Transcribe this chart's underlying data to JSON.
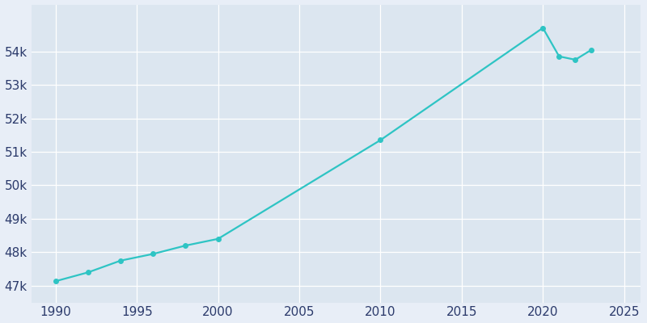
{
  "years": [
    1990,
    1992,
    1994,
    1996,
    1998,
    2000,
    2010,
    2020,
    2021,
    2022,
    2023
  ],
  "population": [
    47136,
    47400,
    47750,
    47950,
    48200,
    48400,
    51350,
    54700,
    53850,
    53750,
    54050
  ],
  "line_color": "#2ec4c4",
  "marker_color": "#2ec4c4",
  "bg_color": "#e8eef7",
  "axes_bg_color": "#dce6f0",
  "tick_color": "#2b3a6b",
  "grid_color": "#ffffff",
  "xlim": [
    1988.5,
    2026
  ],
  "ylim": [
    46500,
    55400
  ],
  "xticks": [
    1990,
    1995,
    2000,
    2005,
    2010,
    2015,
    2020,
    2025
  ],
  "ytick_values": [
    47000,
    48000,
    49000,
    50000,
    51000,
    52000,
    53000,
    54000
  ],
  "figsize": [
    8.0,
    4.0
  ],
  "dpi": 100,
  "marker_size": 4
}
